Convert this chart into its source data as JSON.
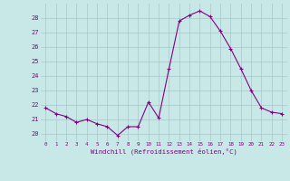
{
  "x": [
    0,
    1,
    2,
    3,
    4,
    5,
    6,
    7,
    8,
    9,
    10,
    11,
    12,
    13,
    14,
    15,
    16,
    17,
    18,
    19,
    20,
    21,
    22,
    23
  ],
  "y": [
    21.8,
    21.4,
    21.2,
    20.8,
    21.0,
    20.7,
    20.5,
    19.9,
    20.5,
    20.5,
    22.2,
    21.1,
    24.5,
    27.8,
    28.2,
    28.5,
    28.1,
    27.1,
    25.9,
    24.5,
    23.0,
    21.8,
    21.5,
    21.4
  ],
  "line_color": "#800080",
  "marker_color": "#800080",
  "bg_color": "#c8e8e8",
  "grid_color": "#a8c8c8",
  "xlabel": "Windchill (Refroidissement éolien,°C)",
  "xlabel_color": "#800080",
  "tick_color": "#800080",
  "ylim": [
    19.5,
    29.0
  ],
  "yticks": [
    20,
    21,
    22,
    23,
    24,
    25,
    26,
    27,
    28
  ],
  "xlim": [
    -0.5,
    23.5
  ],
  "xticks": [
    0,
    1,
    2,
    3,
    4,
    5,
    6,
    7,
    8,
    9,
    10,
    11,
    12,
    13,
    14,
    15,
    16,
    17,
    18,
    19,
    20,
    21,
    22,
    23
  ]
}
